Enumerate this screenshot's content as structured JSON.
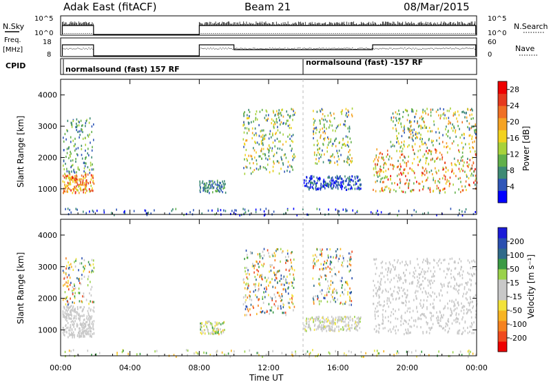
{
  "header": {
    "title": "Adak East (fitACF)",
    "beam": "Beam 21",
    "date": "08/Mar/2015"
  },
  "panels": {
    "nsky_label": "N.Sky",
    "nsearch_label": "N.Search",
    "nsky_ticks": [
      "10^5",
      "10^0"
    ],
    "nsearch_ticks": [
      "10^5",
      "10^0"
    ],
    "freq_label_1": "Freq.",
    "freq_label_2": "[MHz]",
    "freq_ticks": [
      "18",
      "8"
    ],
    "nave_label": "Nave",
    "nave_ticks": [
      "60",
      "0"
    ],
    "cpid_label": "CPID",
    "cpid_segments": [
      "normalsound (fast) 157 RF",
      "normalsound (fast) -157 RF"
    ]
  },
  "chart_data": [
    {
      "type": "heatmap",
      "title": "",
      "xlabel": "",
      "ylabel": "Slant Range [km]",
      "x_ticks": [
        "00:00",
        "04:00",
        "08:00",
        "12:00",
        "16:00",
        "20:00",
        "00:00"
      ],
      "y_ticks": [
        1000,
        2000,
        3000,
        4000
      ],
      "xlim_hours": [
        0,
        24
      ],
      "ylim_km": [
        180,
        4500
      ],
      "colorbar": {
        "label": "Power [dB]",
        "ticks": [
          4,
          8,
          12,
          16,
          20,
          24,
          28
        ],
        "range": [
          0,
          30
        ],
        "colors": [
          "#0000ff",
          "#2f56b8",
          "#3d8a74",
          "#62b04a",
          "#a8d23a",
          "#f2d21e",
          "#f5a323",
          "#f07024",
          "#e63a1e",
          "#ee0000"
        ]
      },
      "echo_regions": [
        {
          "t0": 0.1,
          "t1": 1.9,
          "r0": 900,
          "r1": 1500,
          "v0": 14,
          "v1": 28
        },
        {
          "t0": 0.1,
          "t1": 1.9,
          "r0": 1500,
          "r1": 3300,
          "v0": 4,
          "v1": 14
        },
        {
          "t0": 8.0,
          "t1": 9.5,
          "r0": 900,
          "r1": 1300,
          "v0": 4,
          "v1": 10
        },
        {
          "t0": 10.5,
          "t1": 13.5,
          "r0": 1500,
          "r1": 3600,
          "v0": 4,
          "v1": 20
        },
        {
          "t0": 14.0,
          "t1": 17.3,
          "r0": 1000,
          "r1": 1450,
          "v0": 0,
          "v1": 8
        },
        {
          "t0": 14.5,
          "t1": 16.8,
          "r0": 1800,
          "r1": 3600,
          "v0": 4,
          "v1": 20
        },
        {
          "t0": 18.0,
          "t1": 24.0,
          "r0": 900,
          "r1": 2300,
          "v0": 8,
          "v1": 28
        },
        {
          "t0": 19.0,
          "t1": 24.0,
          "r0": 2300,
          "r1": 3600,
          "v0": 4,
          "v1": 22
        },
        {
          "t0": 0.0,
          "t1": 24.0,
          "r0": 180,
          "r1": 400,
          "v0": 0,
          "v1": 10
        }
      ]
    },
    {
      "type": "heatmap",
      "title": "",
      "xlabel": "Time UT",
      "ylabel": "Slant Range [km]",
      "x_ticks": [
        "00:00",
        "04:00",
        "08:00",
        "12:00",
        "16:00",
        "20:00",
        "00:00"
      ],
      "y_ticks": [
        1000,
        2000,
        3000,
        4000
      ],
      "xlim_hours": [
        0,
        24
      ],
      "ylim_km": [
        180,
        4500
      ],
      "colorbar": {
        "label": "Velocity [m s⁻¹]",
        "ticks": [
          200,
          100,
          50,
          15,
          -15,
          -50,
          -100,
          -200
        ],
        "range": [
          -250,
          250
        ],
        "colors": [
          "#ee0000",
          "#f04a1e",
          "#f5821f",
          "#f7b422",
          "#f2e23a",
          "#c8c8c8",
          "#c8c8c8",
          "#9ad24a",
          "#3a9a44",
          "#2f6a8a",
          "#2a4fb0",
          "#1b1bd8"
        ]
      },
      "echo_regions": [
        {
          "t0": 0.1,
          "t1": 1.9,
          "r0": 800,
          "r1": 1800,
          "v0": -15,
          "v1": 15
        },
        {
          "t0": 0.1,
          "t1": 1.9,
          "r0": 1800,
          "r1": 3300,
          "v0": -200,
          "v1": 200
        },
        {
          "t0": 8.0,
          "t1": 9.5,
          "r0": 900,
          "r1": 1300,
          "v0": -100,
          "v1": 100
        },
        {
          "t0": 10.5,
          "t1": 13.5,
          "r0": 1500,
          "r1": 3600,
          "v0": -200,
          "v1": 200
        },
        {
          "t0": 14.0,
          "t1": 17.3,
          "r0": 1000,
          "r1": 1450,
          "v0": -50,
          "v1": 50
        },
        {
          "t0": 14.5,
          "t1": 16.8,
          "r0": 1800,
          "r1": 3600,
          "v0": -200,
          "v1": 200
        },
        {
          "t0": 18.0,
          "t1": 24.0,
          "r0": 900,
          "r1": 3300,
          "v0": -15,
          "v1": 15
        },
        {
          "t0": 0.0,
          "t1": 24.0,
          "r0": 180,
          "r1": 400,
          "v0": -100,
          "v1": 100
        }
      ]
    }
  ]
}
